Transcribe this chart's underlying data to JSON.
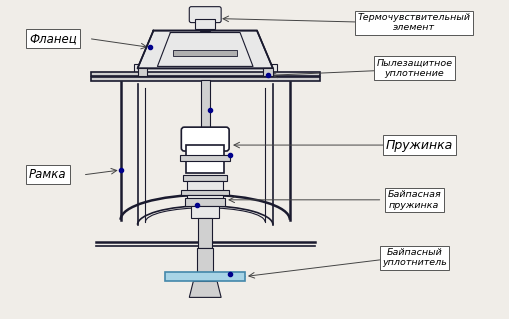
{
  "background_color": "#f0ede8",
  "fig_width": 5.09,
  "fig_height": 3.19,
  "dpi": 100,
  "labels": {
    "flanets": "Фланец",
    "ramka": "Рамка",
    "termo": "Термочувствительный\nэлемент",
    "pylezash": "Пылезащитное\nуплотнение",
    "pruzhinka": "Пружинка",
    "bypass_spring": "Байпасная\nпружинка",
    "bypass_seal": "Байпасный\nуплотнитель"
  },
  "lc": "#1a1a2e",
  "blue": "#00008b",
  "lb": "#a8d4e6",
  "white": "#ffffff",
  "gray1": "#e8e8e8",
  "gray2": "#d0d0d0",
  "gray3": "#b0b0b0"
}
